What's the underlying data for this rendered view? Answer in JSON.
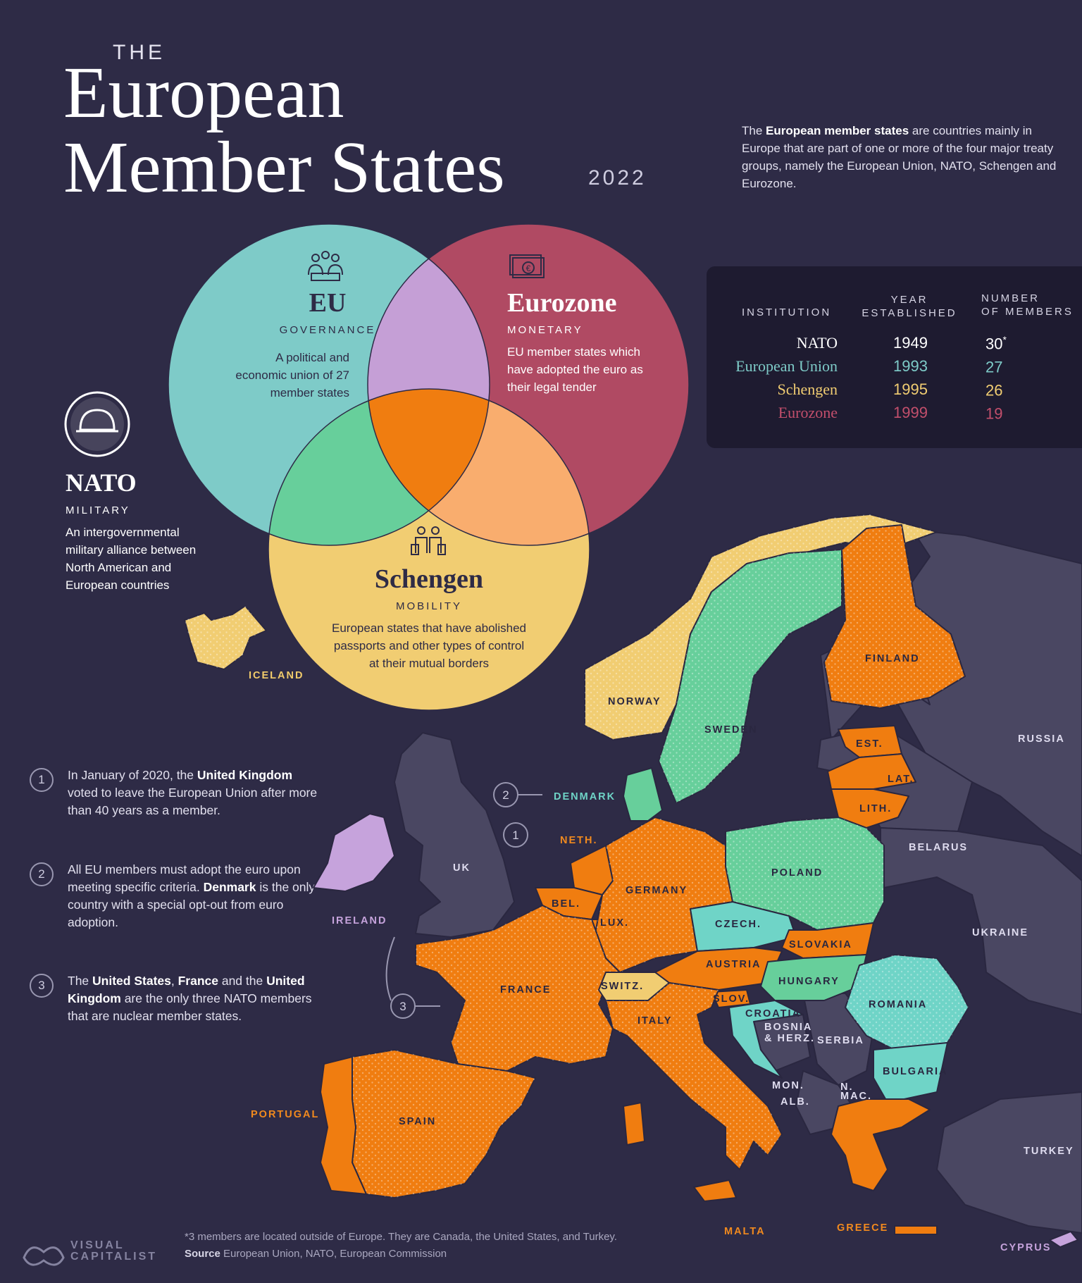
{
  "header": {
    "the": "THE",
    "title_line1": "European",
    "title_line2": "Member States",
    "year": "2022",
    "intro_pre": "The ",
    "intro_bold": "European member states",
    "intro_post": " are countries mainly in Europe that are part of one or more of the four major treaty groups, namely the European Union, NATO, Schengen and Eurozone."
  },
  "venn": {
    "eu": {
      "title": "EU",
      "subtitle": "GOVERNANCE",
      "desc": "A political and economic union of 27 member states",
      "icon": "people-meeting-icon"
    },
    "eurozone": {
      "title": "Eurozone",
      "subtitle": "MONETARY",
      "desc": "EU member states which have adopted the euro as their legal tender",
      "icon": "euro-banknote-icon"
    },
    "schengen": {
      "title": "Schengen",
      "subtitle": "MOBILITY",
      "desc": "European states that have abolished passports and other types of control at their mutual borders",
      "icon": "travelers-icon"
    },
    "nato": {
      "title": "NATO",
      "subtitle": "MILITARY",
      "desc": "An intergovernmental military alliance between North American and European countries",
      "icon": "helmet-icon"
    },
    "colors": {
      "eu": "#7ecbc8",
      "eurozone": "#b04a63",
      "schengen": "#f1cd72",
      "eu_eurozone": "#c59fd6",
      "eu_schengen": "#67cf9b",
      "eurozone_schengen": "#f9ad6e",
      "all": "#f07d10"
    }
  },
  "table": {
    "headers": {
      "institution": "INSTITUTION",
      "year_line1": "YEAR",
      "year_line2": "ESTABLISHED",
      "members_line1": "NUMBER",
      "members_line2": "OF MEMBERS"
    },
    "rows": [
      {
        "institution": "NATO",
        "year": "1949",
        "members": "30",
        "mark": "*",
        "color": "#ffffff"
      },
      {
        "institution": "European Union",
        "year": "1993",
        "members": "27",
        "mark": "",
        "color": "#7ecbc8"
      },
      {
        "institution": "Schengen",
        "year": "1995",
        "members": "26",
        "mark": "",
        "color": "#f1cd72"
      },
      {
        "institution": "Eurozone",
        "year": "1999",
        "members": "19",
        "mark": "",
        "color": "#c34f6c"
      }
    ]
  },
  "notes": [
    {
      "num": "1",
      "p1": "In January of 2020, the ",
      "b1": "United Kingdom",
      "p2": " voted to leave the European Union after more than 40 years as a member.",
      "b2": "",
      "p3": "",
      "b3": "",
      "p4": ""
    },
    {
      "num": "2",
      "p1": "All EU members must adopt the euro upon meeting specific criteria. ",
      "b1": "Denmark",
      "p2": " is the only country with a special opt-out from euro adoption.",
      "b2": "",
      "p3": "",
      "b3": "",
      "p4": ""
    },
    {
      "num": "3",
      "p1": "The ",
      "b1": "United States",
      "p2": ", ",
      "b2": "France",
      "p3": " and the ",
      "b3": "United Kingdom",
      "p4": " are the only three NATO members that are nuclear member states."
    }
  ],
  "map": {
    "labels": {
      "iceland": "ICELAND",
      "norway": "NORWAY",
      "sweden": "SWEDEN",
      "finland": "FINLAND",
      "russia": "RUSSIA",
      "est": "EST.",
      "lat": "LAT.",
      "lith": "LITH.",
      "denmark": "DENMARK",
      "neth": "NETH.",
      "uk": "UK",
      "ireland": "IRELAND",
      "belarus": "BELARUS",
      "poland": "POLAND",
      "germany": "GERMANY",
      "bel": "BEL.",
      "lux": "LUX.",
      "czech": "CZECH.",
      "ukraine": "UKRAINE",
      "slovakia": "SLOVAKIA",
      "austria": "AUSTRIA",
      "hungary": "HUNGARY",
      "france": "FRANCE",
      "switz": "SWITZ.",
      "slov": "SLOV.",
      "croatia": "CROATIA",
      "romania": "ROMANIA",
      "italy": "ITALY",
      "bosnia1": "BOSNIA",
      "bosnia2": "& HERZ.",
      "serbia": "SERBIA",
      "bulgaria": "BULGARIA",
      "mon": "MON.",
      "alb": "ALB.",
      "nmac1": "N.",
      "nmac2": "MAC.",
      "portugal": "PORTUGAL",
      "spain": "SPAIN",
      "turkey": "TURKEY",
      "malta": "MALTA",
      "greece": "GREECE",
      "cyprus": "CYPRUS"
    },
    "markers": {
      "m1": "1",
      "m2": "2",
      "m3": "3"
    }
  },
  "footer": {
    "note": "*3 members are located outside of Europe. They are Canada, the United States, and Turkey.",
    "source_label": "Source",
    "source": " European Union, NATO, European Commission",
    "logo_line1": "VISUAL",
    "logo_line2": "CAPITALIST"
  }
}
